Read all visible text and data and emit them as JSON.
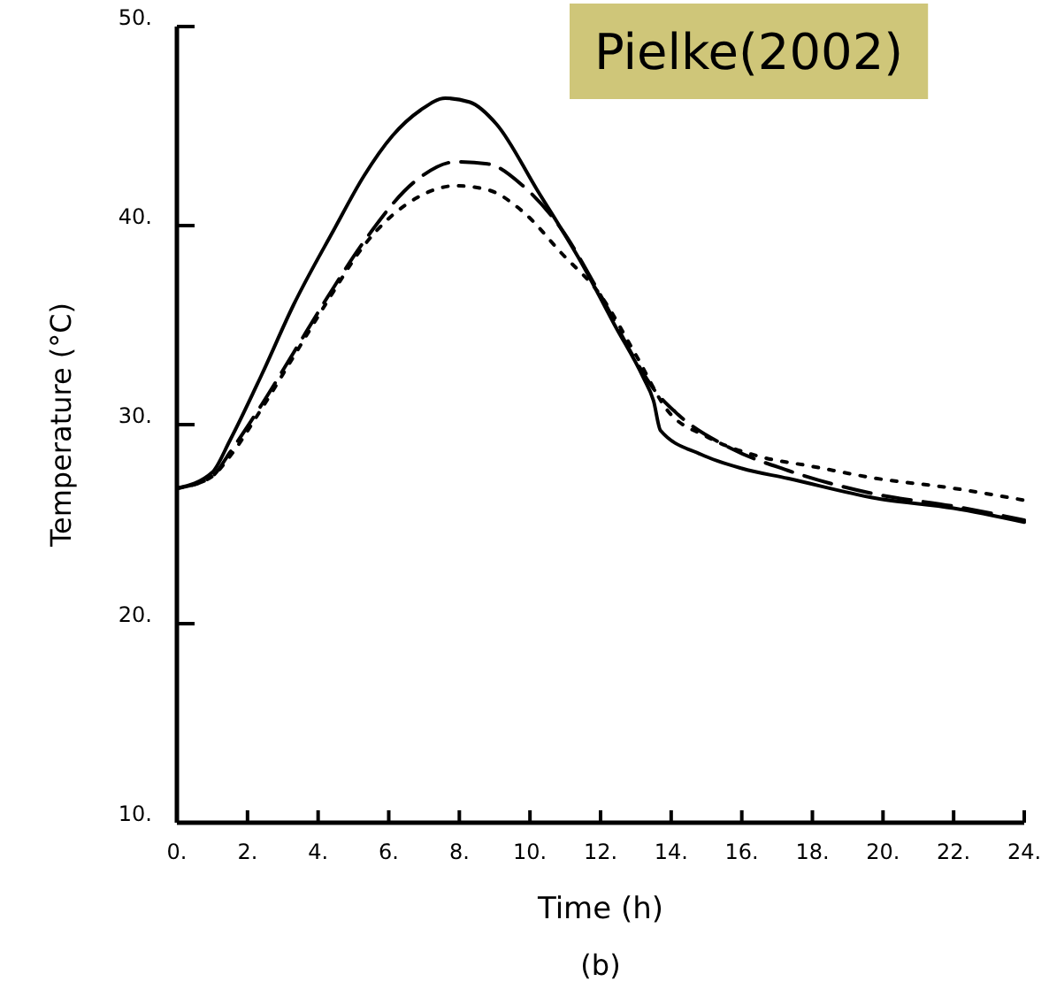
{
  "chart_data": {
    "type": "line",
    "xlabel": "Time (h)",
    "ylabel": "Temperature (°C)",
    "annotations": [
      "Pielke(2002)",
      "(b)"
    ],
    "xlim": [
      0,
      24
    ],
    "ylim": [
      10,
      50
    ],
    "xticks": [
      {
        "value": 0,
        "label": "0."
      },
      {
        "value": 2,
        "label": "2."
      },
      {
        "value": 4,
        "label": "4."
      },
      {
        "value": 6,
        "label": "6."
      },
      {
        "value": 8,
        "label": "8."
      },
      {
        "value": 10,
        "label": "10."
      },
      {
        "value": 12,
        "label": "12."
      },
      {
        "value": 14,
        "label": "14."
      },
      {
        "value": 16,
        "label": "16."
      },
      {
        "value": 18,
        "label": "18."
      },
      {
        "value": 20,
        "label": "20."
      },
      {
        "value": 22,
        "label": "22."
      },
      {
        "value": 24,
        "label": "24."
      }
    ],
    "yticks": [
      {
        "value": 10,
        "label": "10."
      },
      {
        "value": 20,
        "label": "20."
      },
      {
        "value": 30,
        "label": "30."
      },
      {
        "value": 40,
        "label": "40."
      },
      {
        "value": 50,
        "label": "50."
      }
    ],
    "grid": false,
    "marker": "none",
    "series": [
      {
        "color": "#000000",
        "line_style": "solid",
        "x": [
          0,
          1,
          1.5,
          2.4,
          3.3,
          4.45,
          5.3,
          6.1,
          6.9,
          7.6,
          8.3,
          9.05,
          10.2,
          11.5,
          12.4,
          13.2,
          13.5,
          13.7,
          14.85,
          16,
          17.3,
          19.8,
          22,
          24
        ],
        "values": [
          26.8,
          27.6,
          29.2,
          32.5,
          36,
          39.8,
          42.5,
          44.5,
          45.8,
          46.4,
          46.2,
          45.1,
          41.8,
          38,
          35,
          32.4,
          31.2,
          29.7,
          28.5,
          27.8,
          27.3,
          26.3,
          25.8,
          25.1
        ]
      },
      {
        "color": "#000000",
        "line_style": "dashed",
        "x": [
          0,
          1,
          1.5,
          2.4,
          3.3,
          4.3,
          5.3,
          6.8,
          7.9,
          8.8,
          9.8,
          10.9,
          12,
          13,
          13.5,
          14.2,
          15.7,
          17.3,
          19.8,
          22,
          24
        ],
        "values": [
          26.8,
          27.4,
          28.6,
          31,
          33.6,
          36.5,
          39.2,
          42.3,
          43.2,
          43.1,
          42,
          39.8,
          36.5,
          33.2,
          31.8,
          30.5,
          28.8,
          27.7,
          26.5,
          25.9,
          25.2
        ]
      },
      {
        "color": "#000000",
        "line_style": "dotted",
        "x": [
          0,
          1,
          1.5,
          2.4,
          3.3,
          4.3,
          5.3,
          6.8,
          7.9,
          8.8,
          9.8,
          10.9,
          12,
          13,
          13.9,
          15,
          16.5,
          18,
          19.8,
          22,
          24
        ],
        "values": [
          26.8,
          27.4,
          28.4,
          30.8,
          33.4,
          36.3,
          39,
          41.4,
          42,
          41.8,
          40.7,
          38.6,
          36.5,
          33.5,
          30.7,
          29.4,
          28.4,
          27.9,
          27.3,
          26.8,
          26.2
        ]
      }
    ]
  }
}
